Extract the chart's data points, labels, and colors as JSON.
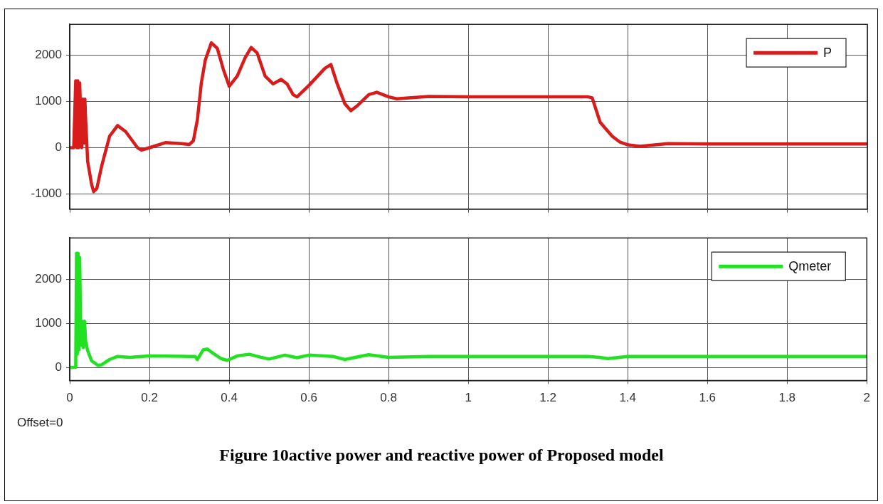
{
  "chart_data": [
    {
      "type": "line",
      "xlim": [
        0,
        2
      ],
      "xticks": [
        0,
        0.2,
        0.4,
        0.6,
        0.8,
        1,
        1.2,
        1.4,
        1.6,
        1.8,
        2
      ],
      "ylim": [
        -1330,
        2670
      ],
      "yticks": [
        -1000,
        0,
        1000,
        2000
      ],
      "grid": true,
      "legend": "top right",
      "tick_labels": "y",
      "line_style": "solid",
      "marker": "none",
      "series": [
        {
          "name": "P",
          "color": "#d81c1c",
          "x": [
            0,
            0.01,
            0.015,
            0.018,
            0.02,
            0.022,
            0.025,
            0.03,
            0.033,
            0.036,
            0.038,
            0.04,
            0.045,
            0.055,
            0.06,
            0.068,
            0.08,
            0.1,
            0.12,
            0.14,
            0.17,
            0.18,
            0.2,
            0.24,
            0.28,
            0.3,
            0.31,
            0.32,
            0.33,
            0.34,
            0.355,
            0.37,
            0.385,
            0.4,
            0.42,
            0.44,
            0.455,
            0.47,
            0.49,
            0.51,
            0.53,
            0.545,
            0.56,
            0.57,
            0.6,
            0.64,
            0.655,
            0.67,
            0.69,
            0.705,
            0.72,
            0.75,
            0.77,
            0.8,
            0.82,
            0.9,
            1,
            1.2,
            1.3,
            1.31,
            1.33,
            1.36,
            1.38,
            1.4,
            1.43,
            1.5,
            1.6,
            2
          ],
          "values": [
            0,
            0,
            1450,
            0,
            1450,
            0,
            1400,
            0,
            1050,
            100,
            1050,
            600,
            -300,
            -800,
            -950,
            -880,
            -400,
            250,
            480,
            350,
            0,
            -50,
            0,
            110,
            90,
            70,
            150,
            600,
            1400,
            1900,
            2270,
            2150,
            1700,
            1330,
            1550,
            1950,
            2170,
            2050,
            1550,
            1380,
            1480,
            1380,
            1150,
            1100,
            1350,
            1720,
            1800,
            1400,
            950,
            800,
            900,
            1150,
            1200,
            1100,
            1060,
            1110,
            1100,
            1100,
            1100,
            1080,
            550,
            250,
            120,
            60,
            30,
            90,
            80,
            80
          ]
        }
      ]
    },
    {
      "type": "line",
      "xlim": [
        0,
        2
      ],
      "xticks": [
        0,
        0.2,
        0.4,
        0.6,
        0.8,
        1,
        1.2,
        1.4,
        1.6,
        1.8,
        2
      ],
      "ylim": [
        -300,
        2950
      ],
      "yticks": [
        0,
        1000,
        2000
      ],
      "grid": true,
      "legend": "top right",
      "line_style": "solid",
      "marker": "none",
      "annotations": [
        "Offset=0",
        "Figure 10active power and reactive power of Proposed model"
      ],
      "series": [
        {
          "name": "Qmeter",
          "color": "#22e022",
          "x": [
            0,
            0.01,
            0.015,
            0.017,
            0.019,
            0.021,
            0.023,
            0.025,
            0.028,
            0.031,
            0.034,
            0.037,
            0.04,
            0.045,
            0.055,
            0.07,
            0.08,
            0.1,
            0.12,
            0.15,
            0.2,
            0.3,
            0.315,
            0.32,
            0.335,
            0.345,
            0.36,
            0.38,
            0.395,
            0.42,
            0.45,
            0.48,
            0.5,
            0.54,
            0.57,
            0.6,
            0.66,
            0.69,
            0.75,
            0.8,
            0.9,
            1.3,
            1.33,
            1.35,
            1.4,
            1.5,
            2
          ],
          "values": [
            0,
            0,
            0,
            2600,
            300,
            2600,
            400,
            2500,
            500,
            1050,
            450,
            1050,
            600,
            380,
            150,
            50,
            60,
            180,
            250,
            230,
            260,
            250,
            250,
            180,
            400,
            420,
            320,
            200,
            160,
            260,
            300,
            230,
            190,
            280,
            220,
            280,
            250,
            180,
            290,
            230,
            250,
            250,
            230,
            200,
            250,
            250,
            250
          ]
        }
      ]
    }
  ]
}
